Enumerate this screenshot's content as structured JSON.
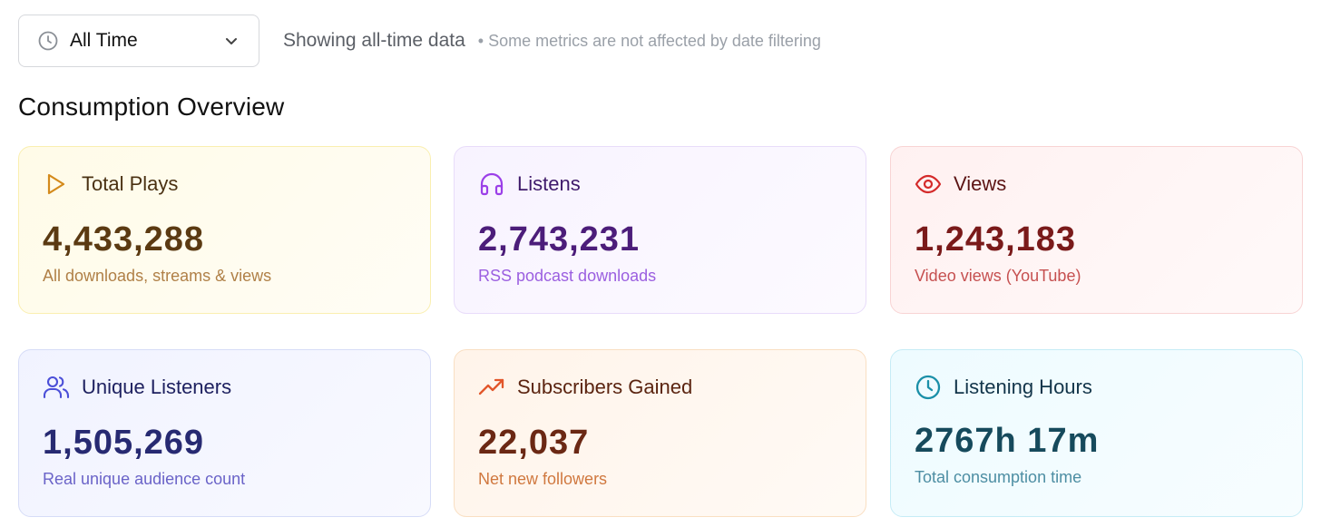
{
  "filter": {
    "selected": "All Time",
    "showing_text": "Showing all-time data",
    "note": "• Some metrics are not affected by date filtering",
    "icon": "clock-icon",
    "chevron_icon": "chevron-down-icon"
  },
  "section": {
    "title": "Consumption Overview"
  },
  "cards": [
    {
      "label": "Total Plays",
      "value": "4,433,288",
      "sub": "All downloads, streams & views",
      "icon": "play-icon",
      "accent": "#d48a1c"
    },
    {
      "label": "Listens",
      "value": "2,743,231",
      "sub": "RSS podcast downloads",
      "icon": "headphones-icon",
      "accent": "#9b3fe8"
    },
    {
      "label": "Views",
      "value": "1,243,183",
      "sub": "Video views (YouTube)",
      "icon": "eye-icon",
      "accent": "#d42a2a"
    },
    {
      "label": "Unique Listeners",
      "value": "1,505,269",
      "sub": "Real unique audience count",
      "icon": "users-icon",
      "accent": "#4b4fd8"
    },
    {
      "label": "Subscribers Gained",
      "value": "22,037",
      "sub": "Net new followers",
      "icon": "trending-up-icon",
      "accent": "#e2562a"
    },
    {
      "label": "Listening Hours",
      "value": "2767h 17m",
      "sub": "Total consumption time",
      "icon": "clock-icon",
      "accent": "#1a8fa8"
    }
  ]
}
